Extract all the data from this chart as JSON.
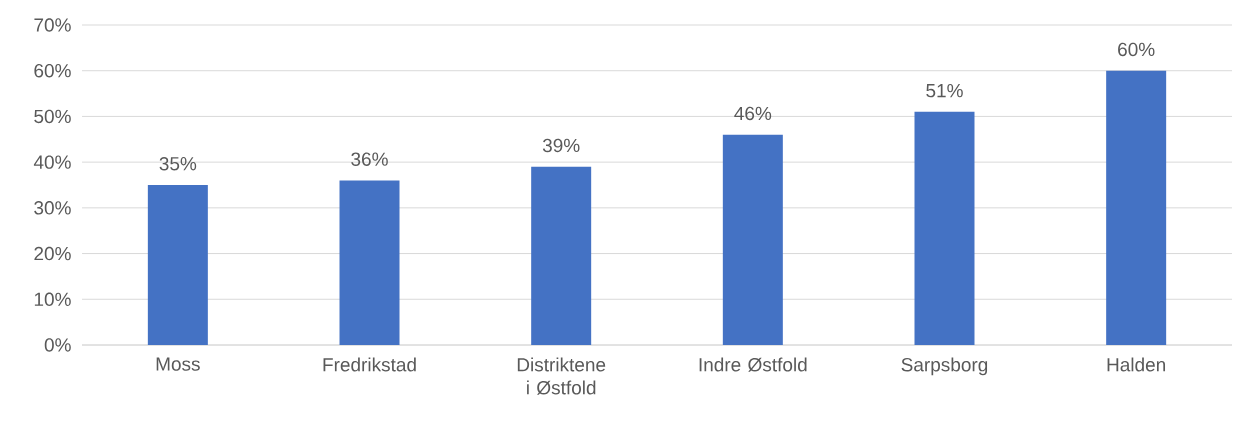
{
  "chart_data": {
    "type": "bar",
    "categories": [
      "Moss",
      "Fredrikstad",
      "Distriktene i Østfold",
      "Indre Østfold",
      "Sarpsborg",
      "Halden"
    ],
    "values": [
      35,
      36,
      39,
      46,
      51,
      60
    ],
    "value_labels": [
      "35%",
      "36%",
      "39%",
      "46%",
      "51%",
      "60%"
    ],
    "color": "#4472c4",
    "ylim": [
      0,
      70
    ],
    "yticks": [
      {
        "value": 0,
        "label": "0%"
      },
      {
        "value": 10,
        "label": "10%"
      },
      {
        "value": 20,
        "label": "20%"
      },
      {
        "value": 30,
        "label": "30%"
      },
      {
        "value": 40,
        "label": "40%"
      },
      {
        "value": 50,
        "label": "50%"
      },
      {
        "value": 60,
        "label": "60%"
      },
      {
        "value": 70,
        "label": "70%"
      }
    ],
    "grid": "y"
  }
}
